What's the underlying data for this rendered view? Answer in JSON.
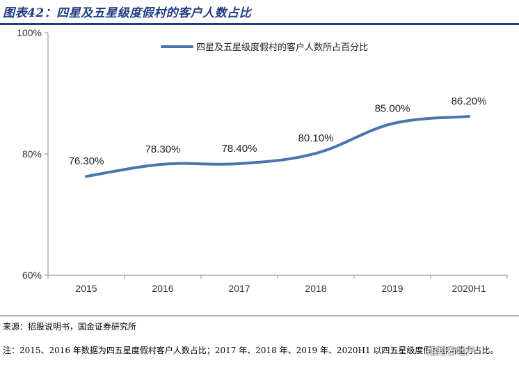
{
  "title": "图表42：四星及五星级度假村的客户人数占比",
  "source": "来源：招股说明书，国金证券研究所",
  "note": "注：2015、2016 年数据为四五星度假村客户人数占比；2017 年、2018 年、2019 年、2020H1 以四五星级度假村容纳能力占比。",
  "watermark": "旭翔看地产",
  "chart_data": {
    "type": "line",
    "title": "图表42：四星及五星级度假村的客户人数占比",
    "categories": [
      "2015",
      "2016",
      "2017",
      "2018",
      "2019",
      "2020H1"
    ],
    "series": [
      {
        "name": "四星及五星级度假村的客户人数所占百分比",
        "values": [
          76.3,
          78.3,
          78.4,
          80.1,
          85.0,
          86.2
        ],
        "labels": [
          "76.30%",
          "78.30%",
          "78.40%",
          "80.10%",
          "85.00%",
          "86.20%"
        ],
        "color": "#4a73b0"
      }
    ],
    "y_ticks": [
      60,
      80,
      100
    ],
    "y_tick_labels": [
      "60%",
      "80%",
      "100%"
    ],
    "ylim": [
      60,
      100
    ],
    "xlabel": "",
    "ylabel": "",
    "grid": false,
    "legend": "top-right",
    "smooth": true
  }
}
